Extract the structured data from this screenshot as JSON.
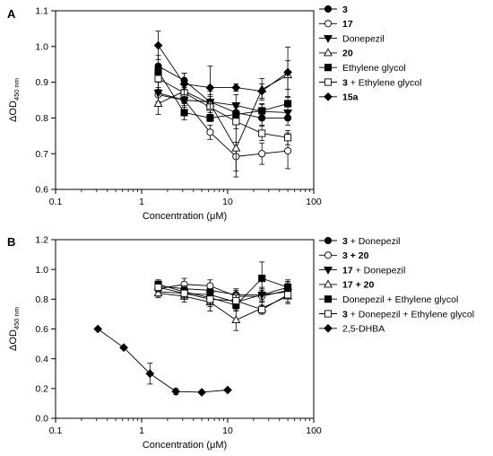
{
  "chart_data": [
    {
      "type": "scatter",
      "panel_label": "A",
      "xlabel": "Concentration (μM)",
      "ylabel": "ΔOD",
      "ylabel_sub": "450 nm",
      "xscale": "log",
      "xlim": [
        0.1,
        100
      ],
      "ylim": [
        0.6,
        1.1
      ],
      "x_ticks": [
        {
          "v": 0.1,
          "label": "0.1"
        },
        {
          "v": 1,
          "label": "1"
        },
        {
          "v": 10,
          "label": "10"
        },
        {
          "v": 100,
          "label": "100"
        }
      ],
      "y_ticks": [
        {
          "v": 0.6,
          "label": "0.6"
        },
        {
          "v": 0.7,
          "label": "0.7"
        },
        {
          "v": 0.8,
          "label": "0.8"
        },
        {
          "v": 0.9,
          "label": "0.9"
        },
        {
          "v": 1.0,
          "label": "1.0"
        },
        {
          "v": 1.1,
          "label": "1.1"
        }
      ],
      "grid": false,
      "legend_position": "right",
      "series": [
        {
          "name": "3",
          "bold": true,
          "marker": "circle-filled",
          "x": [
            1.56,
            3.13,
            6.25,
            12.5,
            25,
            50
          ],
          "y": [
            0.945,
            0.905,
            0.845,
            0.815,
            0.8,
            0.8
          ],
          "err": [
            0.03,
            0.02,
            0.02,
            0.02,
            0.02,
            0.02
          ]
        },
        {
          "name": "17",
          "bold": true,
          "marker": "circle-open",
          "x": [
            1.56,
            3.13,
            6.25,
            12.5,
            25,
            50
          ],
          "y": [
            0.865,
            0.85,
            0.76,
            0.692,
            0.7,
            0.708
          ],
          "err": [
            0.02,
            0.02,
            0.02,
            0.04,
            0.03,
            0.05
          ]
        },
        {
          "name": "Donepezil",
          "bold": false,
          "marker": "triangle-down-filled",
          "x": [
            1.56,
            3.13,
            6.25,
            12.5,
            25,
            50
          ],
          "y": [
            0.87,
            0.85,
            0.845,
            0.835,
            0.818,
            0.815
          ],
          "err": [
            0.03,
            0.03,
            0.03,
            0.03,
            0.02,
            0.02
          ]
        },
        {
          "name": "20",
          "bold": true,
          "marker": "triangle-up-open",
          "x": [
            1.56,
            3.13,
            6.25,
            12.5,
            25,
            50
          ],
          "y": [
            0.84,
            0.875,
            0.84,
            0.715,
            0.88,
            0.92
          ],
          "err": [
            0.03,
            0.03,
            0.04,
            0.08,
            0.03,
            0.04
          ]
        },
        {
          "name": "Ethylene glycol",
          "bold": false,
          "marker": "square-filled",
          "x": [
            1.56,
            3.13,
            6.25,
            12.5,
            25,
            50
          ],
          "y": [
            0.93,
            0.815,
            0.8,
            0.81,
            0.82,
            0.84
          ],
          "err": [
            0.02,
            0.02,
            0.01,
            0.02,
            0.02,
            0.02
          ]
        },
        {
          "name": "3 + Ethylene glycol",
          "bold_part": "3",
          "rest": " + Ethylene glycol",
          "marker": "square-open",
          "x": [
            1.56,
            3.13,
            6.25,
            12.5,
            25,
            50
          ],
          "y": [
            0.91,
            0.87,
            0.83,
            0.79,
            0.757,
            0.745
          ],
          "err": [
            0.03,
            0.03,
            0.03,
            0.02,
            0.02,
            0.02
          ]
        },
        {
          "name": "15a",
          "bold": true,
          "marker": "diamond-filled",
          "x": [
            1.56,
            3.13,
            6.25,
            12.5,
            25,
            50
          ],
          "y": [
            1.003,
            0.895,
            0.885,
            0.885,
            0.875,
            0.928
          ],
          "err": [
            0.04,
            0.03,
            0.06,
            0.01,
            0.02,
            0.07
          ]
        }
      ]
    },
    {
      "type": "scatter",
      "panel_label": "B",
      "xlabel": "Concentration (μM)",
      "ylabel": "ΔOD",
      "ylabel_sub": "450 nm",
      "xscale": "log",
      "xlim": [
        0.1,
        100
      ],
      "ylim": [
        0.0,
        1.2
      ],
      "x_ticks": [
        {
          "v": 0.1,
          "label": "0.1"
        },
        {
          "v": 1,
          "label": "1"
        },
        {
          "v": 10,
          "label": "10"
        },
        {
          "v": 100,
          "label": "100"
        }
      ],
      "y_ticks": [
        {
          "v": 0.0,
          "label": "0.0"
        },
        {
          "v": 0.2,
          "label": "0.2"
        },
        {
          "v": 0.4,
          "label": "0.4"
        },
        {
          "v": 0.6,
          "label": "0.6"
        },
        {
          "v": 0.8,
          "label": "0.8"
        },
        {
          "v": 1.0,
          "label": "1.0"
        },
        {
          "v": 1.2,
          "label": "1.2"
        }
      ],
      "grid": false,
      "legend_position": "right",
      "series": [
        {
          "name": "3 + Donepezil",
          "bold_part": "3",
          "rest": " + Donepezil",
          "marker": "circle-filled",
          "x": [
            1.56,
            3.13,
            6.25,
            12.5,
            25,
            50
          ],
          "y": [
            0.89,
            0.87,
            0.86,
            0.83,
            0.83,
            0.88
          ],
          "err": [
            0.03,
            0.03,
            0.04,
            0.04,
            0.04,
            0.04
          ]
        },
        {
          "name": "3 + 20",
          "bold_part": "3 + 20",
          "rest": "",
          "marker": "circle-open",
          "x": [
            1.56,
            3.13,
            6.25,
            12.5,
            25,
            50
          ],
          "y": [
            0.87,
            0.9,
            0.89,
            0.82,
            0.82,
            0.86
          ],
          "err": [
            0.03,
            0.04,
            0.04,
            0.04,
            0.04,
            0.05
          ]
        },
        {
          "name": "17 + Donepezil",
          "bold_part": "17",
          "rest": " + Donepezil",
          "marker": "triangle-down-filled",
          "x": [
            1.56,
            3.13,
            6.25,
            12.5,
            25,
            50
          ],
          "y": [
            0.85,
            0.84,
            0.83,
            0.78,
            0.83,
            0.85
          ],
          "err": [
            0.03,
            0.04,
            0.04,
            0.05,
            0.05,
            0.04
          ]
        },
        {
          "name": "17 + 20",
          "bold_part": "17 + 20",
          "rest": "",
          "marker": "triangle-up-open",
          "x": [
            1.56,
            3.13,
            6.25,
            12.5,
            25,
            50
          ],
          "y": [
            0.84,
            0.82,
            0.78,
            0.66,
            0.74,
            0.82
          ],
          "err": [
            0.03,
            0.04,
            0.06,
            0.07,
            0.04,
            0.04
          ]
        },
        {
          "name": "Donepezil + Ethylene glycol",
          "bold": false,
          "marker": "square-filled",
          "x": [
            1.56,
            3.13,
            6.25,
            12.5,
            25,
            50
          ],
          "y": [
            0.9,
            0.85,
            0.81,
            0.76,
            0.94,
            0.88
          ],
          "err": [
            0.03,
            0.04,
            0.04,
            0.04,
            0.11,
            0.05
          ]
        },
        {
          "name": "3 + Donepezil + Ethylene glycol",
          "bold_part": "3",
          "rest": " + Donepezil + Ethylene glycol",
          "marker": "square-open",
          "x": [
            1.56,
            3.13,
            6.25,
            12.5,
            25,
            50
          ],
          "y": [
            0.88,
            0.84,
            0.8,
            0.79,
            0.73,
            0.83
          ],
          "err": [
            0.03,
            0.04,
            0.05,
            0.04,
            0.03,
            0.06
          ]
        },
        {
          "name": "2,5-DHBA",
          "bold": false,
          "marker": "diamond-filled",
          "x": [
            0.31,
            0.62,
            1.25,
            2.5,
            5,
            10
          ],
          "y": [
            0.6,
            0.475,
            0.3,
            0.18,
            0.175,
            0.19
          ],
          "err": [
            0.0,
            0.0,
            0.07,
            0.02,
            0.0,
            0.0
          ]
        }
      ]
    }
  ]
}
